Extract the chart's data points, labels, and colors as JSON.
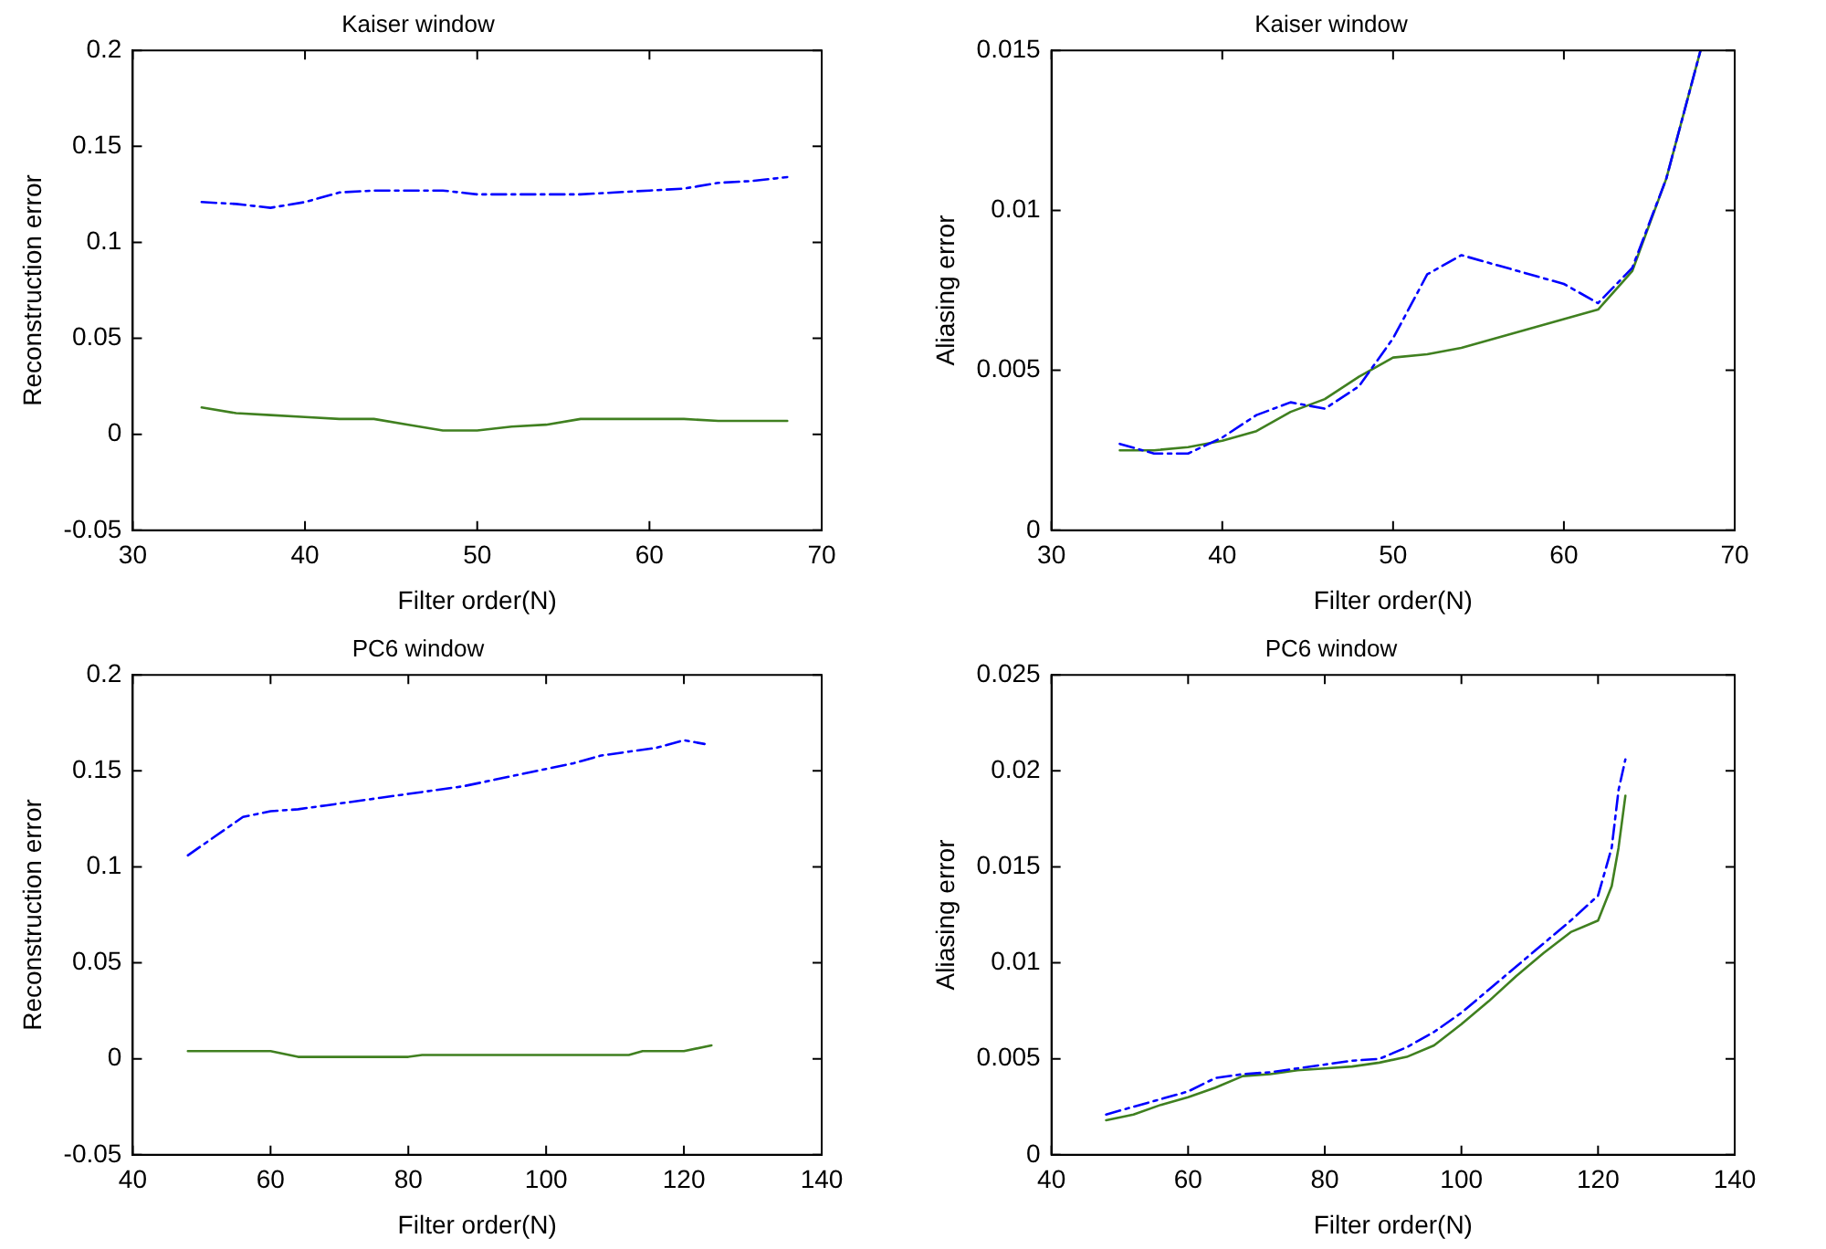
{
  "chart_data": [
    {
      "type": "line",
      "title": "Kaiser window",
      "xlabel": "Filter order(N)",
      "ylabel": "Reconstruction error",
      "xlim": [
        30,
        70
      ],
      "xticks": [
        30,
        40,
        50,
        60,
        70
      ],
      "ylim": [
        -0.05,
        0.2
      ],
      "yticks": [
        -0.05,
        0,
        0.05,
        0.1,
        0.15,
        0.2
      ],
      "grid": false,
      "legend": false,
      "marker": "none",
      "series": [
        {
          "color": "#0000ff",
          "line_style": "dashed",
          "x": [
            34,
            36,
            38,
            40,
            42,
            44,
            46,
            48,
            50,
            52,
            54,
            56,
            58,
            60,
            62,
            64,
            66,
            68
          ],
          "values": [
            0.121,
            0.12,
            0.118,
            0.121,
            0.126,
            0.127,
            0.127,
            0.127,
            0.125,
            0.125,
            0.125,
            0.125,
            0.126,
            0.127,
            0.128,
            0.131,
            0.132,
            0.134
          ]
        },
        {
          "color": "#408020",
          "line_style": "solid",
          "x": [
            34,
            36,
            38,
            40,
            42,
            44,
            46,
            48,
            50,
            52,
            54,
            56,
            58,
            60,
            62,
            64,
            66,
            68
          ],
          "values": [
            0.014,
            0.011,
            0.01,
            0.009,
            0.008,
            0.008,
            0.005,
            0.002,
            0.002,
            0.004,
            0.005,
            0.008,
            0.008,
            0.008,
            0.008,
            0.007,
            0.007,
            0.007
          ]
        }
      ]
    },
    {
      "type": "line",
      "title": "Kaiser window",
      "xlabel": "Filter order(N)",
      "ylabel": "Aliasing error",
      "xlim": [
        30,
        70
      ],
      "xticks": [
        30,
        40,
        50,
        60,
        70
      ],
      "ylim": [
        0,
        0.015
      ],
      "yticks": [
        0,
        0.005,
        0.01,
        0.015
      ],
      "grid": false,
      "legend": false,
      "marker": "none",
      "series": [
        {
          "color": "#0000ff",
          "line_style": "dashed",
          "x": [
            34,
            36,
            38,
            40,
            42,
            44,
            46,
            48,
            50,
            52,
            54,
            56,
            58,
            60,
            62,
            64,
            66,
            68
          ],
          "values": [
            0.0027,
            0.0024,
            0.0024,
            0.0029,
            0.0036,
            0.004,
            0.0038,
            0.0045,
            0.006,
            0.008,
            0.0086,
            0.0083,
            0.008,
            0.0077,
            0.0071,
            0.0082,
            0.011,
            0.015
          ]
        },
        {
          "color": "#408020",
          "line_style": "solid",
          "x": [
            34,
            36,
            38,
            40,
            42,
            44,
            46,
            48,
            50,
            52,
            54,
            56,
            58,
            60,
            62,
            64,
            66,
            68
          ],
          "values": [
            0.0025,
            0.0025,
            0.0026,
            0.0028,
            0.0031,
            0.0037,
            0.0041,
            0.0048,
            0.0054,
            0.0055,
            0.0057,
            0.006,
            0.0063,
            0.0066,
            0.0069,
            0.0081,
            0.011,
            0.015
          ]
        }
      ]
    },
    {
      "type": "line",
      "title": "PC6 window",
      "xlabel": "Filter order(N)",
      "ylabel": "Reconstruction error",
      "xlim": [
        40,
        140
      ],
      "xticks": [
        40,
        60,
        80,
        100,
        120,
        140
      ],
      "ylim": [
        -0.05,
        0.2
      ],
      "yticks": [
        -0.05,
        0,
        0.05,
        0.1,
        0.15,
        0.2
      ],
      "grid": false,
      "legend": false,
      "marker": "none",
      "series": [
        {
          "color": "#0000ff",
          "line_style": "dashed",
          "x": [
            48,
            52,
            56,
            60,
            64,
            68,
            72,
            76,
            80,
            84,
            88,
            92,
            96,
            100,
            104,
            108,
            112,
            116,
            120,
            123
          ],
          "values": [
            0.106,
            0.116,
            0.126,
            0.129,
            0.13,
            0.132,
            0.134,
            0.136,
            0.138,
            0.14,
            0.142,
            0.145,
            0.148,
            0.151,
            0.154,
            0.158,
            0.16,
            0.162,
            0.166,
            0.164
          ]
        },
        {
          "color": "#408020",
          "line_style": "solid",
          "x": [
            48,
            60,
            64,
            80,
            82,
            112,
            114,
            120,
            124
          ],
          "values": [
            0.004,
            0.004,
            0.001,
            0.001,
            0.002,
            0.002,
            0.004,
            0.004,
            0.007
          ]
        }
      ]
    },
    {
      "type": "line",
      "title": "PC6 window",
      "xlabel": "Filter order(N)",
      "ylabel": "Aliasing error",
      "xlim": [
        40,
        140
      ],
      "xticks": [
        40,
        60,
        80,
        100,
        120,
        140
      ],
      "ylim": [
        0,
        0.025
      ],
      "yticks": [
        0,
        0.005,
        0.01,
        0.015,
        0.02,
        0.025
      ],
      "grid": false,
      "legend": false,
      "marker": "none",
      "series": [
        {
          "color": "#0000ff",
          "line_style": "dashed",
          "x": [
            48,
            52,
            56,
            60,
            64,
            68,
            72,
            76,
            80,
            84,
            88,
            92,
            96,
            100,
            104,
            108,
            112,
            116,
            120,
            122,
            123,
            124
          ],
          "values": [
            0.0021,
            0.0025,
            0.0029,
            0.0033,
            0.004,
            0.0042,
            0.0043,
            0.0045,
            0.0047,
            0.0049,
            0.005,
            0.0056,
            0.0064,
            0.0074,
            0.0086,
            0.0098,
            0.011,
            0.0122,
            0.0135,
            0.016,
            0.019,
            0.0206
          ]
        },
        {
          "color": "#408020",
          "line_style": "solid",
          "x": [
            48,
            52,
            56,
            60,
            64,
            68,
            72,
            76,
            80,
            84,
            88,
            92,
            96,
            100,
            104,
            108,
            112,
            116,
            120,
            122,
            123,
            124
          ],
          "values": [
            0.0018,
            0.0021,
            0.0026,
            0.003,
            0.0035,
            0.0041,
            0.0042,
            0.0044,
            0.0045,
            0.0046,
            0.0048,
            0.0051,
            0.0057,
            0.0068,
            0.008,
            0.0093,
            0.0105,
            0.0116,
            0.0122,
            0.014,
            0.016,
            0.0187
          ]
        }
      ]
    }
  ]
}
